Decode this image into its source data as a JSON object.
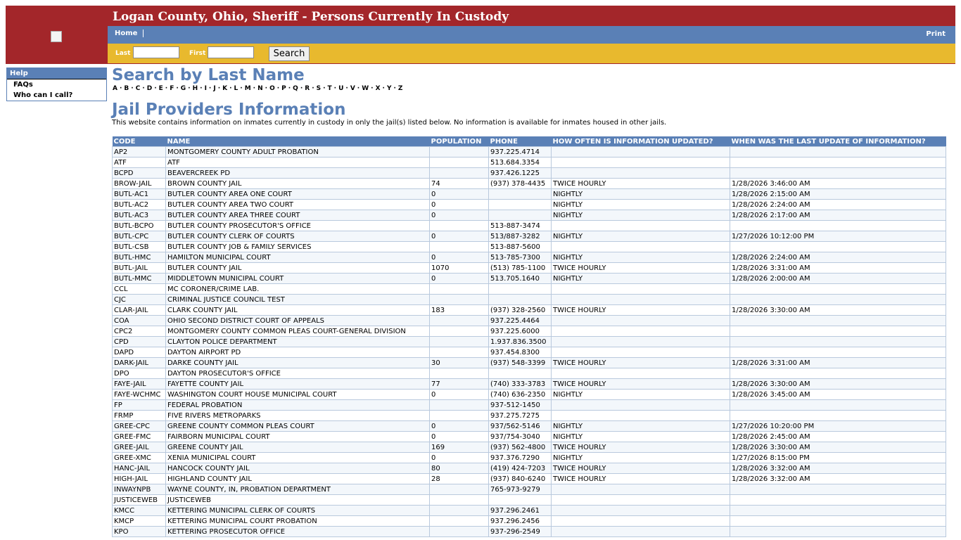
{
  "header": {
    "title": "Logan County, Ohio, Sheriff - Persons Currently In Custody",
    "nav": {
      "home": "Home",
      "print": "Print"
    },
    "search": {
      "last_label": "Last",
      "first_label": "First",
      "button": "Search"
    }
  },
  "sidebar": {
    "items": [
      "Help",
      "FAQs",
      "Who can I call?"
    ]
  },
  "search_by_last_name": {
    "title": "Search by Last Name",
    "letters": [
      "A",
      "B",
      "C",
      "D",
      "E",
      "F",
      "G",
      "H",
      "I",
      "J",
      "K",
      "L",
      "M",
      "N",
      "O",
      "P",
      "Q",
      "R",
      "S",
      "T",
      "U",
      "V",
      "W",
      "X",
      "Y",
      "Z"
    ],
    "separator": "·"
  },
  "providers": {
    "title": "Jail Providers Information",
    "description": "This website contains information on inmates currently in custody in only the jail(s) listed below. No information is available for inmates housed in other jails.",
    "table": {
      "columns": [
        "CODE",
        "NAME",
        "POPULATION",
        "PHONE",
        "HOW OFTEN IS INFORMATION UPDATED?",
        "WHEN WAS THE LAST UPDATE OF INFORMATION?"
      ],
      "rows": [
        [
          "AP2",
          "MONTGOMERY COUNTY ADULT PROBATION",
          null,
          "937.225.4714",
          null,
          null
        ],
        [
          "ATF",
          "ATF",
          null,
          "513.684.3354",
          null,
          null
        ],
        [
          "BCPD",
          "BEAVERCREEK PD",
          null,
          "937.426.1225",
          null,
          null
        ],
        [
          "BROW-JAIL",
          "BROWN COUNTY JAIL",
          74,
          "(937) 378-4435",
          "TWICE HOURLY",
          "1/28/2026 3:46:00 AM"
        ],
        [
          "BUTL-AC1",
          "BUTLER COUNTY AREA ONE COURT",
          0,
          null,
          "NIGHTLY",
          "1/28/2026 2:15:00 AM"
        ],
        [
          "BUTL-AC2",
          "BUTLER COUNTY AREA TWO COURT",
          0,
          null,
          "NIGHTLY",
          "1/28/2026 2:24:00 AM"
        ],
        [
          "BUTL-AC3",
          "BUTLER COUNTY AREA THREE COURT",
          0,
          null,
          "NIGHTLY",
          "1/28/2026 2:17:00 AM"
        ],
        [
          "BUTL-BCPO",
          "BUTLER COUNTY PROSECUTOR'S OFFICE",
          null,
          "513-887-3474",
          null,
          null
        ],
        [
          "BUTL-CPC",
          "BUTLER COUNTY CLERK OF COURTS",
          0,
          "513/887-3282",
          "NIGHTLY",
          "1/27/2026 10:12:00 PM"
        ],
        [
          "BUTL-CSB",
          "BUTLER COUNTY JOB & FAMILY SERVICES",
          null,
          "513-887-5600",
          null,
          null
        ],
        [
          "BUTL-HMC",
          "HAMILTON MUNICIPAL COURT",
          0,
          "513-785-7300",
          "NIGHTLY",
          "1/28/2026 2:24:00 AM"
        ],
        [
          "BUTL-JAIL",
          "BUTLER COUNTY JAIL",
          1070,
          "(513) 785-1100",
          "TWICE HOURLY",
          "1/28/2026 3:31:00 AM"
        ],
        [
          "BUTL-MMC",
          "MIDDLETOWN MUNICIPAL COURT",
          0,
          "513.705.1640",
          "NIGHTLY",
          "1/28/2026 2:00:00 AM"
        ],
        [
          "CCL",
          "MC CORONER/CRIME LAB.",
          null,
          null,
          null,
          null
        ],
        [
          "CJC",
          "CRIMINAL JUSTICE COUNCIL TEST",
          null,
          null,
          null,
          null
        ],
        [
          "CLAR-JAIL",
          "CLARK COUNTY JAIL",
          183,
          "(937) 328-2560",
          "TWICE HOURLY",
          "1/28/2026 3:30:00 AM"
        ],
        [
          "COA",
          "OHIO SECOND DISTRICT COURT OF APPEALS",
          null,
          "937.225.4464",
          null,
          null
        ],
        [
          "CPC2",
          "MONTGOMERY COUNTY COMMON PLEAS COURT-GENERAL DIVISION",
          null,
          "937.225.6000",
          null,
          null
        ],
        [
          "CPD",
          "CLAYTON POLICE DEPARTMENT",
          null,
          "1.937.836.3500",
          null,
          null
        ],
        [
          "DAPD",
          "DAYTON AIRPORT PD",
          null,
          "937.454.8300",
          null,
          null
        ],
        [
          "DARK-JAIL",
          "DARKE COUNTY JAIL",
          30,
          "(937) 548-3399",
          "TWICE HOURLY",
          "1/28/2026 3:31:00 AM"
        ],
        [
          "DPO",
          "DAYTON PROSECUTOR'S OFFICE",
          null,
          null,
          null,
          null
        ],
        [
          "FAYE-JAIL",
          "FAYETTE COUNTY JAIL",
          77,
          "(740) 333-3783",
          "TWICE HOURLY",
          "1/28/2026 3:30:00 AM"
        ],
        [
          "FAYE-WCHMC",
          "WASHINGTON COURT HOUSE MUNICIPAL COURT",
          0,
          "(740) 636-2350",
          "NIGHTLY",
          "1/28/2026 3:45:00 AM"
        ],
        [
          "FP",
          "FEDERAL PROBATION",
          null,
          "937-512-1450",
          null,
          null
        ],
        [
          "FRMP",
          "FIVE RIVERS METROPARKS",
          null,
          "937.275.7275",
          null,
          null
        ],
        [
          "GREE-CPC",
          "GREENE COUNTY COMMON PLEAS COURT",
          0,
          "937/562-5146",
          "NIGHTLY",
          "1/27/2026 10:20:00 PM"
        ],
        [
          "GREE-FMC",
          "FAIRBORN MUNICIPAL COURT",
          0,
          "937/754-3040",
          "NIGHTLY",
          "1/28/2026 2:45:00 AM"
        ],
        [
          "GREE-JAIL",
          "GREENE COUNTY JAIL",
          169,
          "(937) 562-4800",
          "TWICE HOURLY",
          "1/28/2026 3:30:00 AM"
        ],
        [
          "GREE-XMC",
          "XENIA MUNICIPAL COURT",
          0,
          "937.376.7290",
          "NIGHTLY",
          "1/27/2026 8:15:00 PM"
        ],
        [
          "HANC-JAIL",
          "HANCOCK COUNTY JAIL",
          80,
          "(419) 424-7203",
          "TWICE HOURLY",
          "1/28/2026 3:32:00 AM"
        ],
        [
          "HIGH-JAIL",
          "HIGHLAND COUNTY JAIL",
          28,
          "(937) 840-6240",
          "TWICE HOURLY",
          "1/28/2026 3:32:00 AM"
        ],
        [
          "INWAYNPB",
          "WAYNE COUNTY, IN, PROBATION DEPARTMENT",
          null,
          "765-973-9279",
          null,
          null
        ],
        [
          "JUSTICEWEB",
          "JUSTICEWEB",
          null,
          null,
          null,
          null
        ],
        [
          "KMCC",
          "KETTERING MUNICIPAL CLERK OF COURTS",
          null,
          "937.296.2461",
          null,
          null
        ],
        [
          "KMCP",
          "KETTERING MUNICIPAL COURT PROBATION",
          null,
          "937.296.2456",
          null,
          null
        ],
        [
          "KPO",
          "KETTERING PROSECUTOR OFFICE",
          null,
          "937-296-2549",
          null,
          null
        ]
      ]
    }
  }
}
